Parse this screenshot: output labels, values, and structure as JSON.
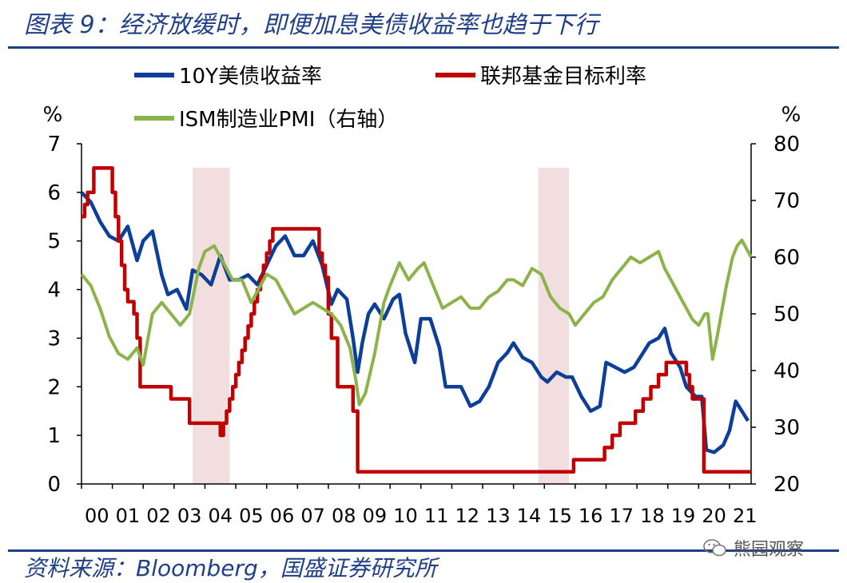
{
  "header": {
    "title": "图表 9：经济放缓时，即便加息美债收益率也趋于下行"
  },
  "footer": {
    "source": "资料来源：Bloomberg，国盛证券研究所",
    "watermark": "熊园观察"
  },
  "chart_data": {
    "type": "line",
    "left_axis": {
      "unit": "%",
      "ylim": [
        0,
        7
      ],
      "ticks": [
        "0",
        "1",
        "2",
        "3",
        "4",
        "5",
        "6",
        "7"
      ]
    },
    "right_axis": {
      "unit": "%",
      "ylim": [
        20,
        80
      ],
      "ticks": [
        "20",
        "30",
        "40",
        "50",
        "60",
        "70",
        "80"
      ]
    },
    "x_ticks": [
      "00",
      "01",
      "02",
      "03",
      "04",
      "05",
      "06",
      "07",
      "08",
      "09",
      "10",
      "11",
      "12",
      "13",
      "14",
      "15",
      "16",
      "17",
      "18",
      "19",
      "20",
      "21"
    ],
    "xlim": [
      2000.0,
      2021.7
    ],
    "shaded_periods": [
      [
        2003.6,
        2004.8
      ],
      [
        2014.8,
        2015.8
      ]
    ],
    "colors": {
      "tsy10y": "#0d3f99",
      "fedfunds": "#c00000",
      "pmi": "#8cb34a",
      "shade": "#f2dede"
    },
    "series": [
      {
        "key": "tsy10y",
        "name": "10Y美债收益率",
        "axis": "left",
        "x": [
          2000.0,
          2000.3,
          2000.6,
          2000.9,
          2001.2,
          2001.5,
          2001.8,
          2002.0,
          2002.3,
          2002.6,
          2002.8,
          2003.1,
          2003.4,
          2003.6,
          2003.9,
          2004.2,
          2004.5,
          2004.8,
          2005.1,
          2005.4,
          2005.7,
          2006.0,
          2006.3,
          2006.6,
          2006.9,
          2007.2,
          2007.5,
          2007.8,
          2008.1,
          2008.3,
          2008.6,
          2008.8,
          2008.95,
          2009.1,
          2009.3,
          2009.5,
          2009.8,
          2010.1,
          2010.3,
          2010.5,
          2010.8,
          2011.0,
          2011.3,
          2011.6,
          2011.8,
          2012.0,
          2012.3,
          2012.6,
          2012.9,
          2013.2,
          2013.5,
          2013.8,
          2014.0,
          2014.3,
          2014.6,
          2014.9,
          2015.1,
          2015.4,
          2015.7,
          2015.9,
          2016.2,
          2016.5,
          2016.8,
          2017.0,
          2017.3,
          2017.6,
          2017.9,
          2018.1,
          2018.4,
          2018.7,
          2018.9,
          2019.1,
          2019.4,
          2019.6,
          2019.9,
          2020.1,
          2020.25,
          2020.5,
          2020.8,
          2021.0,
          2021.2,
          2021.4,
          2021.6
        ],
        "values": [
          6.0,
          5.8,
          5.4,
          5.1,
          5.0,
          5.3,
          4.6,
          5.0,
          5.2,
          4.3,
          3.9,
          4.0,
          3.6,
          4.4,
          4.3,
          4.1,
          4.7,
          4.2,
          4.2,
          4.3,
          4.1,
          4.5,
          4.9,
          5.1,
          4.7,
          4.7,
          5.0,
          4.5,
          3.7,
          4.0,
          3.8,
          3.0,
          2.3,
          2.9,
          3.5,
          3.7,
          3.4,
          3.8,
          3.9,
          3.1,
          2.5,
          3.4,
          3.4,
          2.8,
          2.0,
          2.0,
          2.0,
          1.6,
          1.7,
          2.0,
          2.5,
          2.7,
          2.9,
          2.6,
          2.5,
          2.2,
          2.1,
          2.3,
          2.2,
          2.2,
          1.8,
          1.5,
          1.6,
          2.5,
          2.4,
          2.3,
          2.4,
          2.6,
          2.9,
          3.0,
          3.2,
          2.7,
          2.4,
          2.0,
          1.8,
          1.8,
          0.7,
          0.65,
          0.8,
          1.1,
          1.7,
          1.5,
          1.3
        ]
      },
      {
        "key": "fedfunds",
        "name": "联邦基金目标利率",
        "axis": "left",
        "step": true,
        "x": [
          2000.0,
          2000.1,
          2000.2,
          2000.4,
          2001.0,
          2001.1,
          2001.2,
          2001.3,
          2001.4,
          2001.5,
          2001.7,
          2001.8,
          2001.9,
          2002.9,
          2003.5,
          2004.5,
          2004.6,
          2004.7,
          2004.8,
          2004.9,
          2005.0,
          2005.1,
          2005.2,
          2005.3,
          2005.4,
          2005.5,
          2005.6,
          2005.7,
          2005.8,
          2005.9,
          2006.0,
          2006.1,
          2006.2,
          2006.3,
          2006.4,
          2006.5,
          2007.7,
          2007.8,
          2007.9,
          2008.0,
          2008.1,
          2008.3,
          2008.8,
          2008.95,
          2015.95,
          2016.95,
          2017.2,
          2017.45,
          2017.95,
          2018.2,
          2018.45,
          2018.7,
          2018.95,
          2019.6,
          2019.7,
          2019.8,
          2020.17,
          2021.7
        ],
        "values": [
          5.5,
          5.75,
          6.0,
          6.5,
          6.0,
          5.5,
          5.0,
          4.5,
          4.0,
          3.75,
          3.5,
          3.0,
          2.0,
          1.75,
          1.25,
          1.0,
          1.25,
          1.5,
          1.75,
          2.0,
          2.25,
          2.5,
          2.75,
          3.0,
          3.25,
          3.5,
          3.75,
          4.0,
          4.25,
          4.5,
          4.75,
          5.0,
          5.25,
          5.25,
          5.25,
          5.25,
          4.75,
          4.5,
          4.25,
          3.5,
          3.0,
          2.0,
          1.5,
          0.25,
          0.5,
          0.75,
          1.0,
          1.25,
          1.5,
          1.75,
          2.0,
          2.25,
          2.5,
          2.25,
          2.0,
          1.75,
          0.25,
          0.25
        ]
      },
      {
        "key": "pmi",
        "name": "ISM制造业PMI（右轴）",
        "axis": "right",
        "x": [
          2000.0,
          2000.3,
          2000.6,
          2000.9,
          2001.2,
          2001.5,
          2001.8,
          2002.0,
          2002.3,
          2002.6,
          2002.9,
          2003.2,
          2003.5,
          2003.8,
          2004.0,
          2004.3,
          2004.6,
          2004.9,
          2005.2,
          2005.5,
          2005.8,
          2006.0,
          2006.3,
          2006.6,
          2006.9,
          2007.2,
          2007.5,
          2007.8,
          2008.1,
          2008.4,
          2008.7,
          2008.9,
          2009.0,
          2009.2,
          2009.5,
          2009.8,
          2010.0,
          2010.3,
          2010.6,
          2010.9,
          2011.1,
          2011.4,
          2011.7,
          2012.0,
          2012.3,
          2012.6,
          2012.9,
          2013.2,
          2013.5,
          2013.8,
          2014.0,
          2014.3,
          2014.6,
          2014.9,
          2015.2,
          2015.5,
          2015.8,
          2016.0,
          2016.3,
          2016.6,
          2016.9,
          2017.2,
          2017.5,
          2017.8,
          2018.1,
          2018.4,
          2018.7,
          2018.9,
          2019.2,
          2019.5,
          2019.8,
          2020.0,
          2020.2,
          2020.3,
          2020.45,
          2020.6,
          2020.9,
          2021.1,
          2021.25,
          2021.4,
          2021.7
        ],
        "values": [
          57,
          55,
          51,
          46,
          43,
          42,
          44,
          41,
          50,
          52,
          50,
          48,
          50,
          58,
          61,
          62,
          59,
          56,
          56,
          52,
          55,
          57,
          56,
          53,
          50,
          51,
          52,
          51,
          50,
          48,
          44,
          38,
          34,
          36,
          43,
          52,
          55,
          59,
          56,
          58,
          59,
          55,
          51,
          52,
          53,
          51,
          51,
          53,
          54,
          56,
          56,
          55,
          58,
          57,
          53,
          51,
          50,
          48,
          50,
          52,
          53,
          56,
          58,
          60,
          59,
          60,
          61,
          58,
          55,
          52,
          49,
          48,
          50,
          50,
          42,
          46,
          55,
          60,
          62,
          63,
          60
        ]
      }
    ]
  }
}
